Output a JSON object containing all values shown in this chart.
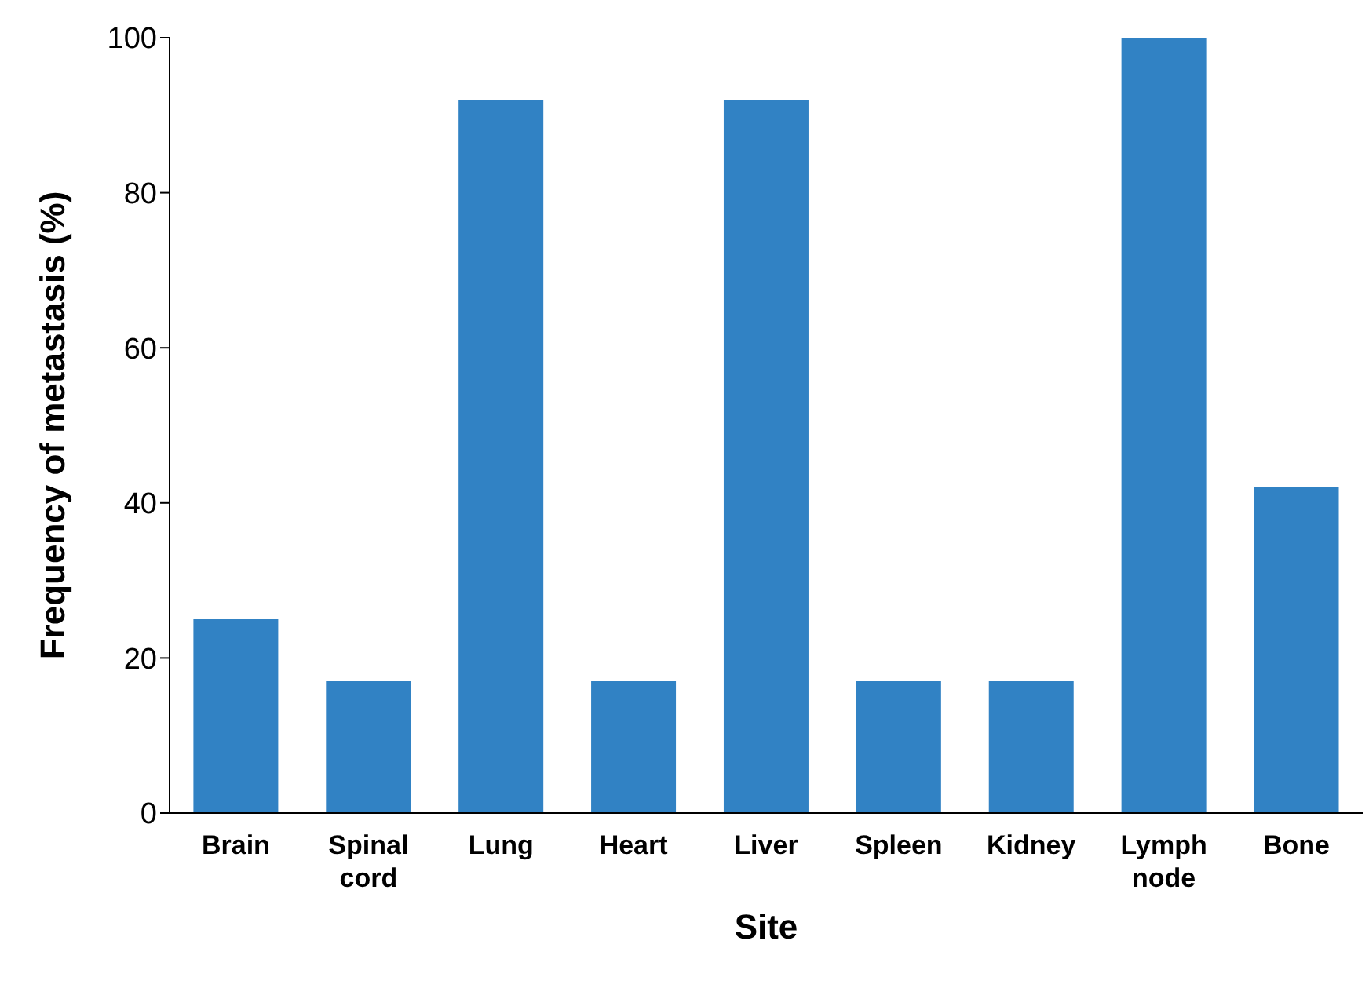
{
  "chart_data": {
    "type": "bar",
    "xlabel": "Site",
    "ylabel": "Frequency of metastasis (%)",
    "categories": [
      "Brain",
      "Spinal cord",
      "Lung",
      "Heart",
      "Liver",
      "Spleen",
      "Kidney",
      "Lymph node",
      "Bone"
    ],
    "values": [
      25,
      17,
      92,
      17,
      92,
      17,
      17,
      100,
      42
    ],
    "color": "#3182c4",
    "ylim": [
      0,
      100
    ],
    "yticks": [
      0,
      20,
      40,
      60,
      80,
      100
    ],
    "grid": false,
    "legend": false
  }
}
